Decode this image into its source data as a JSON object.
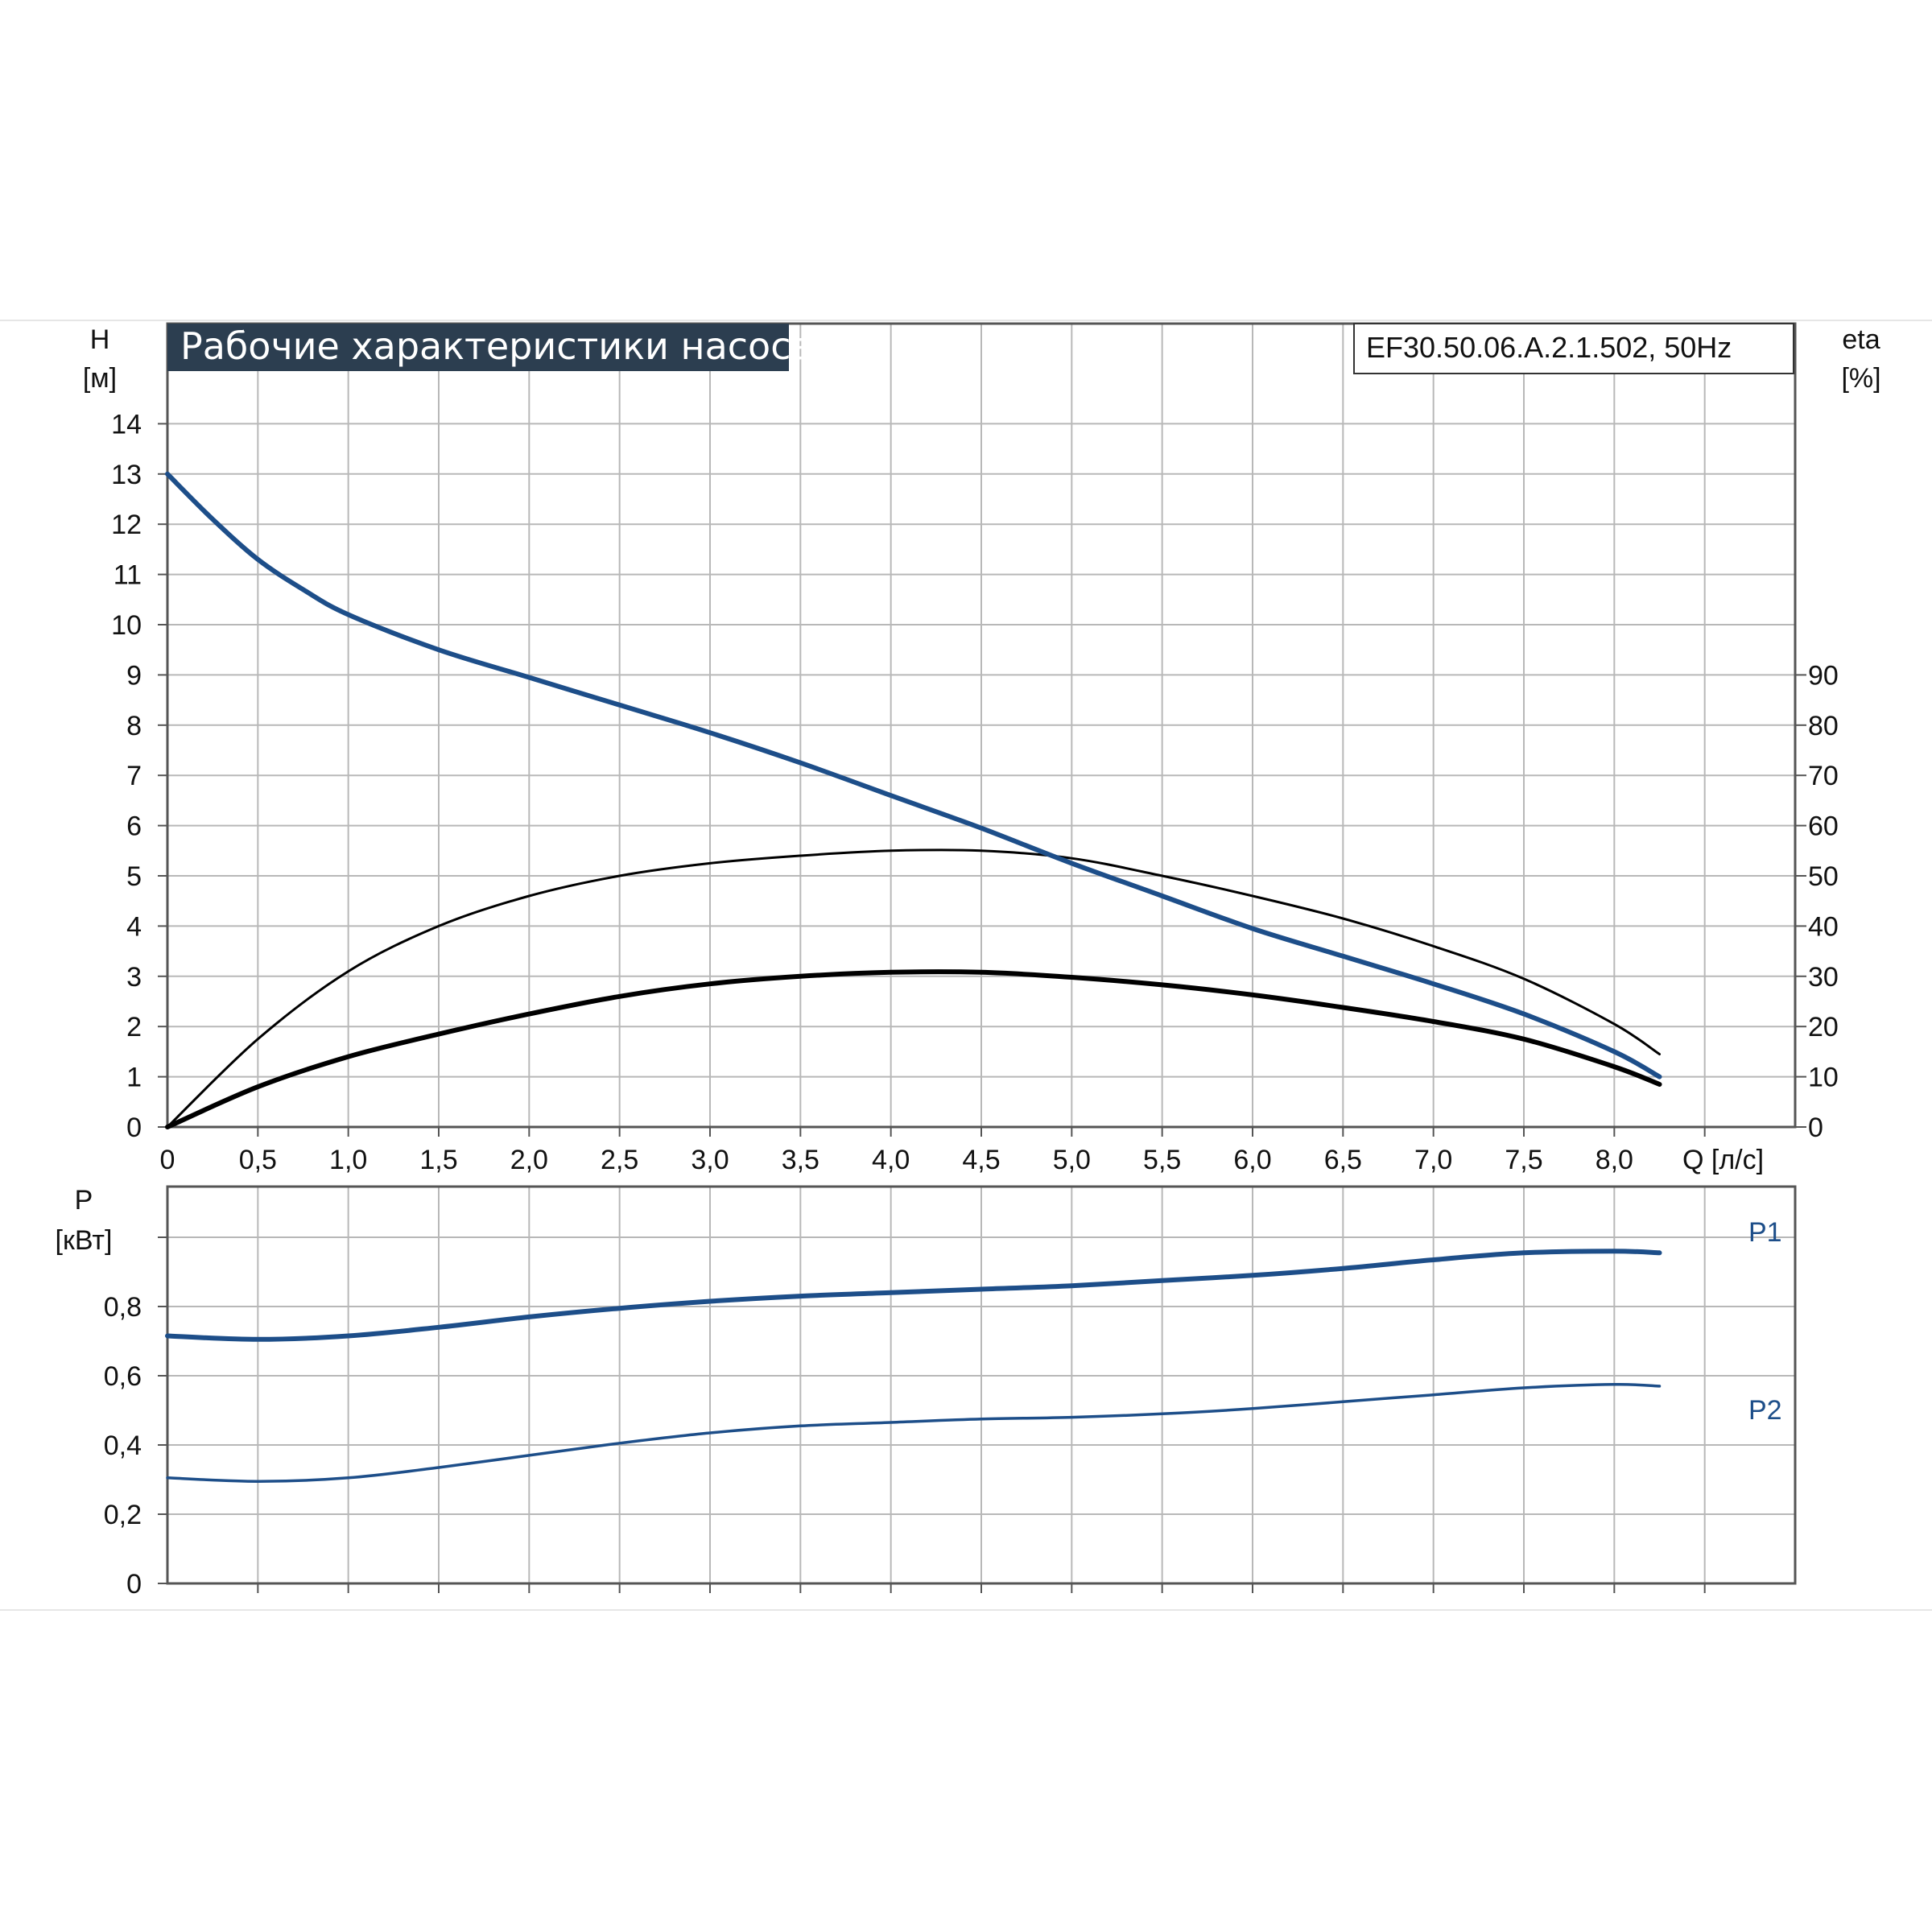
{
  "title": "Рабочие характеристики насоса",
  "model": "EF30.50.06.A.2.1.502, 50Hz",
  "colors": {
    "head_curve": "#1d4e89",
    "power_curves": "#1d4e89",
    "efficiency_curves": "#000000",
    "title_bg": "#2c3e50",
    "grid": "#b8b8b8"
  },
  "axes": {
    "h_label": "H",
    "h_unit": "[м]",
    "eta_label": "eta",
    "eta_unit": "[%]",
    "q_label": "Q [л/с]",
    "p_label": "P",
    "p_unit": "[кВт]"
  },
  "labels": {
    "p1": "P1",
    "p2": "P2"
  },
  "chart_data": [
    {
      "type": "line",
      "xlabel": "Q [л/с]",
      "ylabel": "H [м]",
      "y2label": "eta [%]",
      "xlim": [
        0,
        9.0
      ],
      "ylim": [
        0,
        14.5
      ],
      "y2lim": [
        0,
        145
      ],
      "x_ticks": [
        "0",
        "0,5",
        "1,0",
        "1,5",
        "2,0",
        "2,5",
        "3,0",
        "3,5",
        "4,0",
        "4,5",
        "5,0",
        "5,5",
        "6,0",
        "6,5",
        "7,0",
        "7,5",
        "8,0"
      ],
      "y_ticks": [
        "0",
        "1",
        "2",
        "3",
        "4",
        "5",
        "6",
        "7",
        "8",
        "9",
        "10",
        "11",
        "12",
        "13",
        "14"
      ],
      "y2_ticks": [
        "0",
        "10",
        "20",
        "30",
        "40",
        "50",
        "60",
        "70",
        "80",
        "90"
      ],
      "grid": true,
      "series": [
        {
          "axis": "left",
          "x": [
            0,
            0.25,
            0.5,
            0.75,
            1.0,
            1.5,
            2.0,
            2.5,
            3.0,
            3.5,
            4.0,
            4.5,
            5.0,
            5.5,
            6.0,
            6.5,
            7.0,
            7.5,
            8.0,
            8.25
          ],
          "values": [
            13.0,
            12.1,
            11.3,
            10.7,
            10.2,
            9.5,
            8.95,
            8.4,
            7.85,
            7.25,
            6.6,
            5.95,
            5.25,
            4.6,
            3.95,
            3.4,
            2.85,
            2.25,
            1.5,
            1.0
          ]
        },
        {
          "axis": "right",
          "x": [
            0,
            0.5,
            1.0,
            1.5,
            2.0,
            2.5,
            3.0,
            3.5,
            4.0,
            4.5,
            5.0,
            5.5,
            6.0,
            6.5,
            7.0,
            7.5,
            8.0,
            8.25
          ],
          "values": [
            0,
            17.5,
            31,
            40,
            46,
            50,
            52.5,
            54,
            55,
            55,
            53.5,
            50,
            46,
            41.5,
            36,
            29.5,
            20.5,
            14.5
          ]
        },
        {
          "axis": "right",
          "x": [
            0,
            0.5,
            1.0,
            1.5,
            2.0,
            2.5,
            3.0,
            3.5,
            4.0,
            4.5,
            5.0,
            5.5,
            6.0,
            6.5,
            7.0,
            7.5,
            8.0,
            8.25
          ],
          "values": [
            0,
            8,
            14,
            18.5,
            22.5,
            26,
            28.5,
            30,
            30.8,
            30.8,
            29.8,
            28.3,
            26.3,
            23.8,
            21,
            17.5,
            12,
            8.5
          ]
        }
      ]
    },
    {
      "type": "line",
      "xlabel": "",
      "ylabel": "P [кВт]",
      "xlim": [
        0,
        9.0
      ],
      "ylim": [
        0,
        1.15
      ],
      "y_ticks": [
        "0",
        "0,2",
        "0,4",
        "0,6",
        "0,8"
      ],
      "grid": true,
      "series": [
        {
          "name": "P1",
          "x": [
            0,
            0.5,
            1.0,
            1.5,
            2.0,
            2.5,
            3.0,
            3.5,
            4.0,
            4.5,
            5.0,
            5.5,
            6.0,
            6.5,
            7.0,
            7.5,
            8.0,
            8.25
          ],
          "values": [
            0.715,
            0.705,
            0.715,
            0.74,
            0.77,
            0.795,
            0.815,
            0.83,
            0.84,
            0.85,
            0.86,
            0.875,
            0.89,
            0.91,
            0.935,
            0.955,
            0.96,
            0.955
          ]
        },
        {
          "name": "P2",
          "x": [
            0,
            0.5,
            1.0,
            1.5,
            2.0,
            2.5,
            3.0,
            3.5,
            4.0,
            4.5,
            5.0,
            5.5,
            6.0,
            6.5,
            7.0,
            7.5,
            8.0,
            8.25
          ],
          "values": [
            0.305,
            0.295,
            0.305,
            0.335,
            0.37,
            0.405,
            0.435,
            0.455,
            0.465,
            0.475,
            0.48,
            0.49,
            0.505,
            0.525,
            0.545,
            0.565,
            0.575,
            0.57
          ]
        }
      ]
    }
  ]
}
